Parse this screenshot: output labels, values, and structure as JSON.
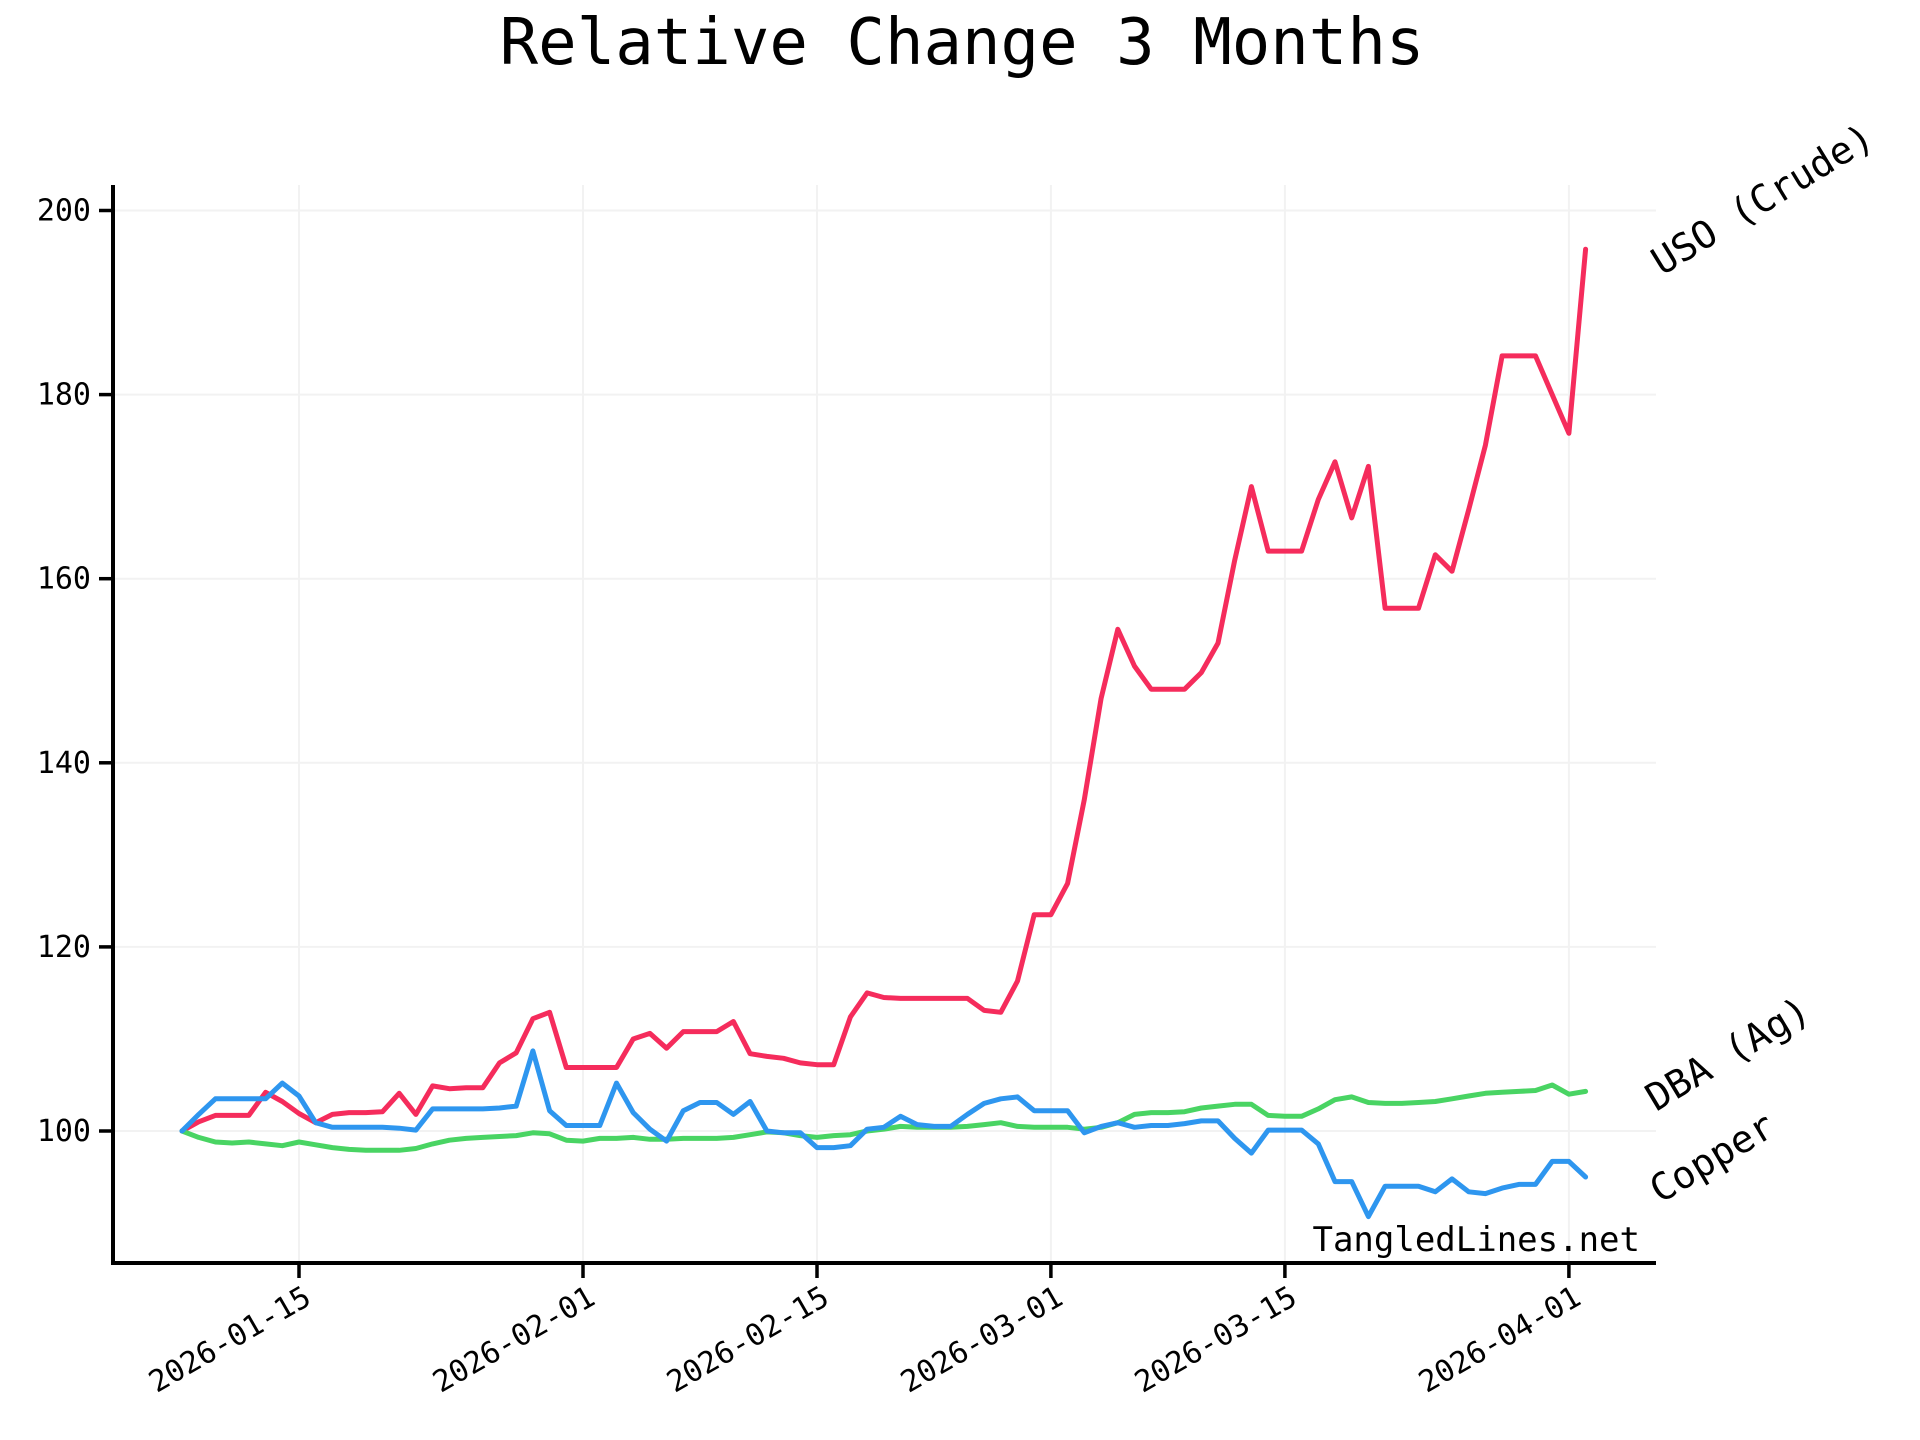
{
  "title": "Relative Change 3 Months",
  "watermark": "TangledLines.net",
  "chart_data": {
    "type": "line",
    "title": "Relative Change 3 Months",
    "xlabel": "",
    "ylabel": "",
    "grid": true,
    "legend_position": "inline-right-edge-labels",
    "ylim": [
      86,
      203
    ],
    "yticks": [
      100,
      120,
      140,
      160,
      180,
      200
    ],
    "xticks": [
      {
        "index": 7,
        "label": "2026-01-15"
      },
      {
        "index": 24,
        "label": "2026-02-01"
      },
      {
        "index": 38,
        "label": "2026-02-15"
      },
      {
        "index": 52,
        "label": "2026-03-01"
      },
      {
        "index": 66,
        "label": "2026-03-15"
      },
      {
        "index": 83,
        "label": "2026-04-01"
      }
    ],
    "x": [
      "2026-01-08",
      "2026-01-09",
      "2026-01-10",
      "2026-01-11",
      "2026-01-12",
      "2026-01-13",
      "2026-01-14",
      "2026-01-15",
      "2026-01-16",
      "2026-01-17",
      "2026-01-18",
      "2026-01-19",
      "2026-01-20",
      "2026-01-21",
      "2026-01-22",
      "2026-01-23",
      "2026-01-24",
      "2026-01-25",
      "2026-01-26",
      "2026-01-27",
      "2026-01-28",
      "2026-01-29",
      "2026-01-30",
      "2026-01-31",
      "2026-02-01",
      "2026-02-02",
      "2026-02-03",
      "2026-02-04",
      "2026-02-05",
      "2026-02-06",
      "2026-02-07",
      "2026-02-08",
      "2026-02-09",
      "2026-02-10",
      "2026-02-11",
      "2026-02-12",
      "2026-02-13",
      "2026-02-14",
      "2026-02-15",
      "2026-02-16",
      "2026-02-17",
      "2026-02-18",
      "2026-02-19",
      "2026-02-20",
      "2026-02-21",
      "2026-02-22",
      "2026-02-23",
      "2026-02-24",
      "2026-02-25",
      "2026-02-26",
      "2026-02-27",
      "2026-02-28",
      "2026-03-01",
      "2026-03-02",
      "2026-03-03",
      "2026-03-04",
      "2026-03-05",
      "2026-03-06",
      "2026-03-07",
      "2026-03-08",
      "2026-03-09",
      "2026-03-10",
      "2026-03-11",
      "2026-03-12",
      "2026-03-13",
      "2026-03-14",
      "2026-03-15",
      "2026-03-16",
      "2026-03-17",
      "2026-03-18",
      "2026-03-19",
      "2026-03-20",
      "2026-03-21",
      "2026-03-22",
      "2026-03-23",
      "2026-03-24",
      "2026-03-25",
      "2026-03-26",
      "2026-03-27",
      "2026-03-28",
      "2026-03-29",
      "2026-03-30",
      "2026-03-31",
      "2026-04-01",
      "2026-04-02"
    ],
    "series": [
      {
        "id": "uso-crude",
        "label": "USO (Crude)",
        "color": "#f52c5c",
        "values": [
          100.0,
          101.0,
          101.7,
          101.7,
          101.7,
          104.2,
          103.2,
          101.9,
          100.9,
          101.8,
          102.0,
          102.0,
          102.1,
          104.1,
          101.8,
          104.9,
          104.6,
          104.7,
          104.7,
          107.4,
          108.5,
          112.2,
          112.9,
          106.9,
          106.9,
          106.9,
          106.9,
          110.0,
          110.6,
          109.0,
          110.8,
          110.8,
          110.8,
          111.9,
          108.4,
          108.1,
          107.9,
          107.4,
          107.2,
          107.2,
          112.4,
          115.0,
          114.5,
          114.4,
          114.4,
          114.4,
          114.4,
          114.4,
          113.1,
          112.9,
          116.3,
          123.5,
          123.5,
          126.9,
          136.0,
          147.0,
          154.5,
          150.5,
          148.0,
          148.0,
          148.0,
          149.8,
          153.0,
          162.0,
          170.0,
          163.0,
          163.0,
          163.0,
          168.6,
          172.7,
          166.6,
          172.2,
          156.8,
          156.8,
          156.8,
          162.6,
          160.8,
          167.5,
          174.5,
          184.2,
          184.2,
          184.2,
          180.0,
          175.8,
          195.8
        ]
      },
      {
        "id": "dba-ag",
        "label": "DBA (Ag)",
        "color": "#49d463",
        "values": [
          100.0,
          99.3,
          98.8,
          98.7,
          98.8,
          98.6,
          98.4,
          98.8,
          98.5,
          98.2,
          98.0,
          97.9,
          97.9,
          97.9,
          98.1,
          98.6,
          99.0,
          99.2,
          99.3,
          99.4,
          99.5,
          99.8,
          99.7,
          99.0,
          98.9,
          99.2,
          99.2,
          99.3,
          99.1,
          99.1,
          99.2,
          99.2,
          99.2,
          99.3,
          99.6,
          99.9,
          99.8,
          99.5,
          99.3,
          99.5,
          99.6,
          100.0,
          100.2,
          100.5,
          100.4,
          100.4,
          100.4,
          100.5,
          100.7,
          100.9,
          100.5,
          100.4,
          100.4,
          100.4,
          100.2,
          100.4,
          100.9,
          101.8,
          102.0,
          102.0,
          102.1,
          102.5,
          102.7,
          102.9,
          102.9,
          101.7,
          101.6,
          101.6,
          102.4,
          103.4,
          103.7,
          103.1,
          103.0,
          103.0,
          103.1,
          103.2,
          103.5,
          103.8,
          104.1,
          104.2,
          104.3,
          104.4,
          105.0,
          104.0,
          104.3
        ]
      },
      {
        "id": "copper",
        "label": "Copper",
        "color": "#2e96ef",
        "values": [
          100.0,
          101.8,
          103.5,
          103.5,
          103.5,
          103.5,
          105.2,
          103.8,
          100.9,
          100.4,
          100.4,
          100.4,
          100.4,
          100.3,
          100.1,
          102.4,
          102.4,
          102.4,
          102.4,
          102.5,
          102.7,
          108.7,
          102.2,
          100.6,
          100.6,
          100.6,
          105.2,
          102.0,
          100.2,
          98.9,
          102.2,
          103.1,
          103.1,
          101.8,
          103.2,
          100.0,
          99.8,
          99.8,
          98.2,
          98.2,
          98.4,
          100.2,
          100.4,
          101.6,
          100.7,
          100.5,
          100.5,
          101.8,
          103.0,
          103.5,
          103.7,
          102.2,
          102.2,
          102.2,
          99.8,
          100.5,
          100.9,
          100.4,
          100.6,
          100.6,
          100.8,
          101.1,
          101.1,
          99.2,
          97.6,
          100.1,
          100.1,
          100.1,
          98.6,
          94.5,
          94.5,
          90.7,
          94.0,
          94.0,
          94.0,
          93.4,
          94.8,
          93.4,
          93.2,
          93.8,
          94.2,
          94.2,
          96.7,
          96.7,
          95.0
        ]
      }
    ]
  },
  "colors": {
    "background": "#ffffff",
    "grid": "#f2f2f2",
    "axis": "#000000",
    "tick_label": "#000000",
    "watermark": "#9a9a9a"
  }
}
